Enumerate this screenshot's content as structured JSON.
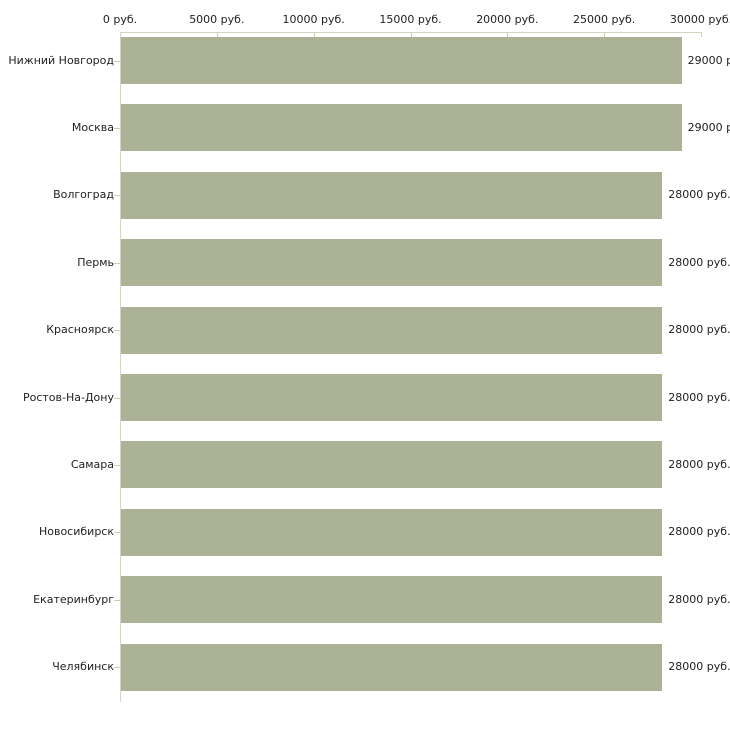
{
  "chart_data": {
    "type": "bar",
    "orientation": "horizontal",
    "title": "",
    "xlabel": "",
    "ylabel": "",
    "axis_position": "top",
    "grid": false,
    "legend": "none",
    "xlim": [
      0,
      30000
    ],
    "x_tick_values": [
      0,
      5000,
      10000,
      15000,
      20000,
      25000,
      30000
    ],
    "x_tick_labels": [
      "0 руб.",
      "5000 руб.",
      "10000 руб.",
      "15000 руб.",
      "20000 руб.",
      "25000 руб.",
      "30000 руб."
    ],
    "categories": [
      "Нижний Новгород",
      "Москва",
      "Волгоград",
      "Пермь",
      "Красноярск",
      "Ростов-На-Дону",
      "Самара",
      "Новосибирск",
      "Екатеринбург",
      "Челябинск"
    ],
    "values": [
      29000,
      29000,
      28000,
      28000,
      28000,
      28000,
      28000,
      28000,
      28000,
      28000
    ],
    "value_labels": [
      "29000 р",
      "29000 р",
      "28000 руб.",
      "28000 руб.",
      "28000 руб.",
      "28000 руб.",
      "28000 руб.",
      "28000 руб.",
      "28000 руб.",
      "28000 руб."
    ],
    "colors": {
      "bar": "#acb296",
      "axis_line": "#d2d4c4",
      "tick_mark": "#cbd0ad",
      "text": "#222222",
      "background": "#ffffff"
    }
  }
}
